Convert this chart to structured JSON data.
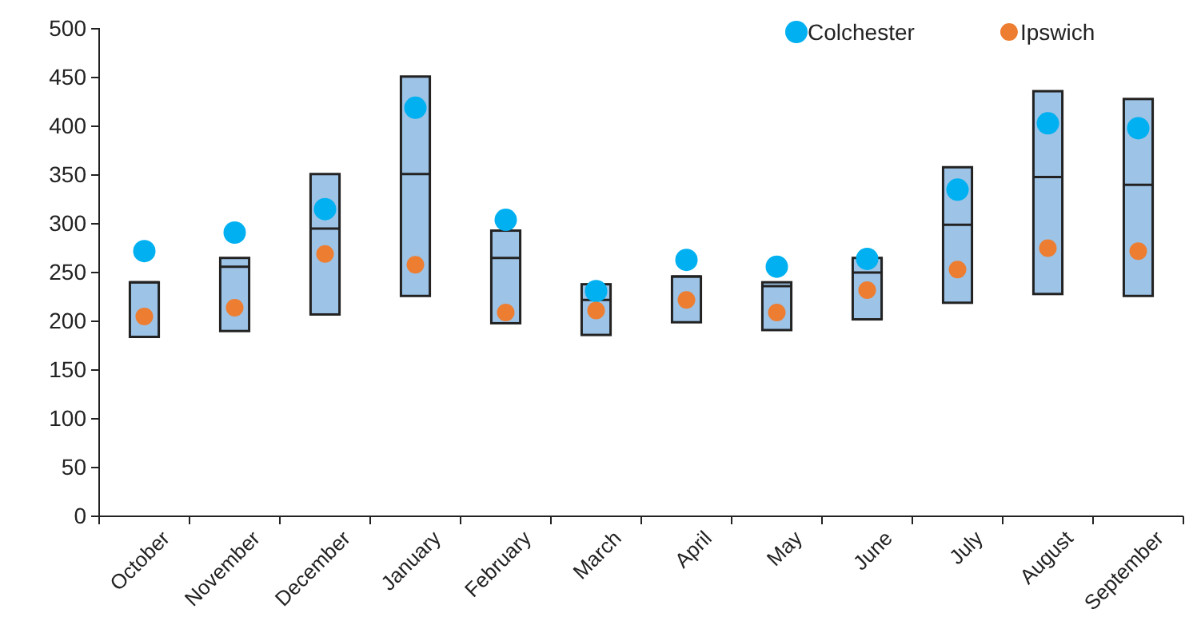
{
  "chart_data": {
    "type": "box",
    "categories": [
      "October",
      "November",
      "December",
      "January",
      "February",
      "March",
      "April",
      "May",
      "June",
      "July",
      "August",
      "September"
    ],
    "boxes": [
      {
        "low": 184,
        "q1": 184,
        "median": 240,
        "q3": 240,
        "high": 240
      },
      {
        "low": 190,
        "q1": 190,
        "median": 256,
        "q3": 265,
        "high": 265
      },
      {
        "low": 207,
        "q1": 207,
        "median": 295,
        "q3": 351,
        "high": 351
      },
      {
        "low": 226,
        "q1": 226,
        "median": 351,
        "q3": 451,
        "high": 451
      },
      {
        "low": 198,
        "q1": 198,
        "median": 265,
        "q3": 293,
        "high": 293
      },
      {
        "low": 186,
        "q1": 186,
        "median": 222,
        "q3": 238,
        "high": 238
      },
      {
        "low": 199,
        "q1": 199,
        "median": 246,
        "q3": 246,
        "high": 246
      },
      {
        "low": 191,
        "q1": 191,
        "median": 236,
        "q3": 240,
        "high": 240
      },
      {
        "low": 202,
        "q1": 202,
        "median": 250,
        "q3": 265,
        "high": 265
      },
      {
        "low": 219,
        "q1": 219,
        "median": 299,
        "q3": 358,
        "high": 358
      },
      {
        "low": 228,
        "q1": 228,
        "median": 348,
        "q3": 436,
        "high": 436
      },
      {
        "low": 226,
        "q1": 226,
        "median": 340,
        "q3": 428,
        "high": 428
      }
    ],
    "color": "#9dc3e6",
    "series": [
      {
        "type": "scatter",
        "name": "Colchester",
        "color": "#00b0f0",
        "x": [
          "October",
          "November",
          "December",
          "January",
          "February",
          "March",
          "April",
          "May",
          "June",
          "July",
          "August",
          "September"
        ],
        "values": [
          272,
          291,
          315,
          419,
          304,
          231,
          263,
          256,
          264,
          335,
          403,
          398
        ]
      },
      {
        "type": "scatter",
        "name": "Ipswich",
        "color": "#ed7d31",
        "x": [
          "October",
          "November",
          "December",
          "January",
          "February",
          "March",
          "April",
          "May",
          "June",
          "July",
          "August",
          "September"
        ],
        "values": [
          205,
          214,
          269,
          258,
          209,
          211,
          222,
          209,
          232,
          253,
          275,
          272
        ]
      }
    ],
    "ylim": [
      0,
      500
    ],
    "yticks": [
      0,
      50,
      100,
      150,
      200,
      250,
      300,
      350,
      400,
      450,
      500
    ],
    "grid": false,
    "legend": "top right",
    "marker": "circle"
  }
}
